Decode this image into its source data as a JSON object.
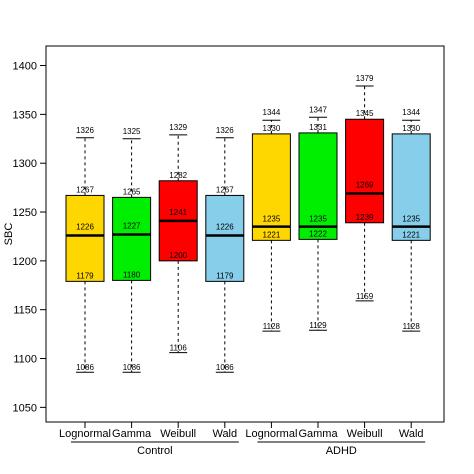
{
  "chart_data": {
    "type": "box",
    "ylabel": "SBC",
    "ylim": [
      1035,
      1420
    ],
    "yticks": [
      1050,
      1100,
      1150,
      1200,
      1250,
      1300,
      1350,
      1400
    ],
    "ytick_labels": [
      "1050",
      "1100",
      "1150",
      "1200",
      "1250",
      "1300",
      "1350",
      "1400"
    ],
    "grid": false,
    "groups": [
      {
        "label": "Control",
        "box_indices": [
          0,
          1,
          2,
          3
        ]
      },
      {
        "label": "ADHD",
        "box_indices": [
          4,
          5,
          6,
          7
        ]
      }
    ],
    "boxes": [
      {
        "label": "Lognormal",
        "group": "Control",
        "color": "#FFD700",
        "min": 1086,
        "q1": 1179,
        "median": 1226,
        "mean": 1226,
        "q3": 1267,
        "max": 1326,
        "labels": {
          "min": "1086",
          "q1": "1179",
          "median": "1226",
          "q3": "1267",
          "max": "1326"
        }
      },
      {
        "label": "Gamma",
        "group": "Control",
        "color": "#00EE00",
        "min": 1086,
        "q1": 1180,
        "median": 1227,
        "mean": 1227,
        "q3": 1265,
        "max": 1325,
        "labels": {
          "min": "1086",
          "q1": "1180",
          "median": "1227",
          "q3": "1265",
          "max": "1325"
        }
      },
      {
        "label": "Weibull",
        "group": "Control",
        "color": "#FF0000",
        "min": 1106,
        "q1": 1200,
        "median": 1241,
        "mean": 1241,
        "q3": 1282,
        "max": 1329,
        "labels": {
          "min": "1106",
          "q1": "1200",
          "median": "1241",
          "q3": "1282",
          "max": "1329"
        }
      },
      {
        "label": "Wald",
        "group": "Control",
        "color": "#87CEEB",
        "min": 1086,
        "q1": 1179,
        "median": 1226,
        "mean": 1226,
        "q3": 1267,
        "max": 1326,
        "labels": {
          "min": "1086",
          "q1": "1179",
          "median": "1226",
          "q3": "1267",
          "max": "1326"
        }
      },
      {
        "label": "Lognormal",
        "group": "ADHD",
        "color": "#FFD700",
        "min": 1128,
        "q1": 1221,
        "median": 1235,
        "mean": 1235,
        "q3": 1330,
        "max": 1344,
        "labels": {
          "min": "1128",
          "q1": "1221",
          "median": "1235",
          "q3": "1330",
          "max": "1344"
        }
      },
      {
        "label": "Gamma",
        "group": "ADHD",
        "color": "#00EE00",
        "min": 1129,
        "q1": 1222,
        "median": 1235,
        "mean": 1235,
        "q3": 1331,
        "max": 1347,
        "labels": {
          "min": "1129",
          "q1": "1222",
          "median": "1235",
          "q3": "1331",
          "max": "1347"
        }
      },
      {
        "label": "Weibull",
        "group": "ADHD",
        "color": "#FF0000",
        "min": 1159,
        "q1": 1239,
        "median": 1269,
        "mean": 1269,
        "q3": 1345,
        "max": 1379,
        "labels": {
          "min": "1159",
          "q1": "1239",
          "median": "1269",
          "q3": "1345",
          "max": "1379"
        }
      },
      {
        "label": "Wald",
        "group": "ADHD",
        "color": "#87CEEB",
        "min": 1128,
        "q1": 1221,
        "median": 1235,
        "mean": 1235,
        "q3": 1330,
        "max": 1344,
        "labels": {
          "min": "1128",
          "q1": "1221",
          "median": "1235",
          "q3": "1330",
          "max": "1344"
        }
      }
    ]
  }
}
